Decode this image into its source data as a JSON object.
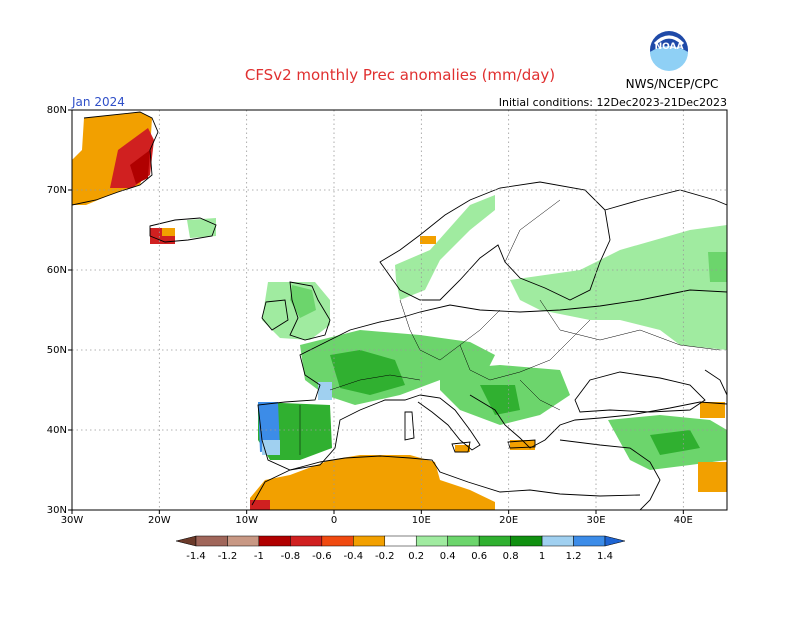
{
  "title": "CFSv2 monthly Prec anomalies (mm/day)",
  "agency": "NWS/NCEP/CPC",
  "logo_text": "NOAA",
  "month_label": "Jan 2024",
  "init_label": "Initial conditions: 12Dec2023-21Dec2023",
  "colors": {
    "title": "#e03030",
    "month": "#3050c8",
    "gridline": "#999999",
    "coast": "#000000"
  },
  "chart_data": {
    "type": "heatmap",
    "lon_range": [
      -30,
      45
    ],
    "lat_range": [
      30,
      80
    ],
    "x_ticks": [
      "30W",
      "20W",
      "10W",
      "0",
      "10E",
      "20E",
      "30E",
      "40E"
    ],
    "y_ticks": [
      "30N",
      "40N",
      "50N",
      "60N",
      "70N",
      "80N"
    ],
    "colorbar": {
      "labels": [
        "-1.4",
        "-1.2",
        "-1",
        "-0.8",
        "-0.6",
        "-0.4",
        "-0.2",
        "0.2",
        "0.4",
        "0.6",
        "0.8",
        "1",
        "1.2",
        "1.4"
      ],
      "colors": [
        "#6b3a2a",
        "#a0665a",
        "#c89884",
        "#b00000",
        "#d02020",
        "#f04a10",
        "#f2a000",
        "#ffffff",
        "#a0eba0",
        "#6cd56c",
        "#30b030",
        "#109010",
        "#a0d0f0",
        "#3c8ce8",
        "#1e64d2"
      ]
    },
    "anomaly_regions": [
      {
        "area": "Greenland east coast",
        "value": -0.4
      },
      {
        "area": "Greenland east coast interior",
        "value": -0.6
      },
      {
        "area": "Greenland southeast tip",
        "value": -0.8
      },
      {
        "area": "Iceland west",
        "value": -0.6
      },
      {
        "area": "Iceland east",
        "value": 0.4
      },
      {
        "area": "Norway coast",
        "value": 0.4
      },
      {
        "area": "Norway far north",
        "value": -0.4
      },
      {
        "area": "British Isles",
        "value": 0.4
      },
      {
        "area": "France",
        "value": 0.6
      },
      {
        "area": "Central Europe",
        "value": 0.4
      },
      {
        "area": "Balkans",
        "value": 0.6
      },
      {
        "area": "Western Russia",
        "value": 0.4
      },
      {
        "area": "Portugal / west Iberia",
        "value": 1.2
      },
      {
        "area": "North Africa",
        "value": -0.4
      },
      {
        "area": "Turkey east / Caucasus",
        "value": 0.8
      }
    ]
  }
}
